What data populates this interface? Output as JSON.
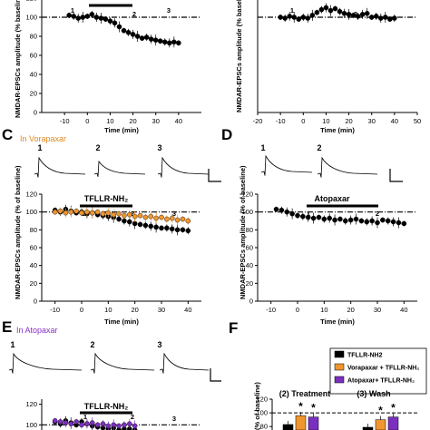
{
  "panels": {
    "A": {
      "yaxis": "NMDAR-EPSCs amplitude (% baseline)",
      "xaxis": "Time (min)",
      "yticks": [
        "0",
        "20",
        "40",
        "60",
        "80",
        "100",
        "120"
      ],
      "xticks": [
        "-10",
        "0",
        "10",
        "20",
        "30",
        "40"
      ],
      "markers": [
        "1",
        "2",
        "3"
      ],
      "bar": ""
    },
    "B": {
      "yaxis": "NMDAR-EPSCs amplitude (% baseline)",
      "xaxis": "Time (min)",
      "yticks": [
        "0",
        "20",
        "40",
        "60",
        "80",
        "100",
        "120"
      ],
      "xticks": [
        "-20",
        "-10",
        "0",
        "10",
        "20",
        "30",
        "40",
        "50"
      ],
      "markers": [
        "1",
        "2"
      ]
    },
    "C": {
      "letter": "C",
      "title": "In Vorapaxar",
      "yaxis": "NMDAR-EPSCs amplitude (% of baseline)",
      "xaxis": "Time (min)",
      "yticks": [
        "0",
        "20",
        "40",
        "60",
        "80",
        "100",
        "120"
      ],
      "xticks": [
        "-10",
        "0",
        "10",
        "20",
        "30",
        "40"
      ],
      "markers": [
        "1",
        "2",
        "3"
      ],
      "trace_labels": [
        "1",
        "2",
        "3"
      ],
      "bar": "TFLLR-NH₂"
    },
    "D": {
      "letter": "D",
      "yaxis": "NMDAR-EPSCs amplitude (% of baseline)",
      "xaxis": "Time (min)",
      "yticks": [
        "0",
        "20",
        "40",
        "60",
        "80",
        "100",
        "120"
      ],
      "xticks": [
        "-10",
        "0",
        "10",
        "20",
        "30",
        "40"
      ],
      "markers": [
        "1",
        "2"
      ],
      "trace_labels": [
        "1",
        "2"
      ],
      "bar": "Atopaxar"
    },
    "E": {
      "letter": "E",
      "title": "In Atopaxar",
      "yticks": [
        "100",
        "120"
      ],
      "markers": [
        "1",
        "2",
        "3"
      ],
      "trace_labels": [
        "1",
        "2",
        "3"
      ],
      "bar": "TFLLR-NH₂"
    },
    "F": {
      "letter": "F",
      "yaxis": "(% of baseline)",
      "yticks": [
        "80",
        "100",
        "120"
      ],
      "groups": [
        "(2) Treatment",
        "(3) Wash"
      ],
      "star": "*",
      "legend": [
        "TFLLR-NH2",
        "Vorapaxar + TFLLR-NH₂",
        "Atopaxar+ TFLLR-NH₂"
      ]
    }
  },
  "colors": {
    "black": "#000000",
    "orange": "#f0962e",
    "purple": "#7b2fbf",
    "title_orange": "#e08a1e",
    "title_purple": "#8a2fc9"
  },
  "chart_data": [
    {
      "panel": "A",
      "type": "scatter",
      "xlim": [
        -20,
        50
      ],
      "ylim": [
        0,
        120
      ],
      "baseline": 100,
      "series": [
        {
          "color": "#000000",
          "x": [
            -8,
            -6,
            -4,
            -2,
            0,
            2,
            4,
            6,
            8,
            10,
            12,
            14,
            16,
            18,
            20,
            22,
            24,
            26,
            28,
            30,
            32,
            34,
            36,
            38,
            40
          ],
          "y": [
            102,
            101,
            99,
            100,
            101,
            103,
            100,
            99,
            98,
            96,
            94,
            90,
            86,
            84,
            82,
            80,
            78,
            79,
            77,
            76,
            75,
            74,
            73,
            74,
            73
          ]
        }
      ]
    },
    {
      "panel": "B",
      "type": "scatter",
      "xlim": [
        -20,
        50
      ],
      "ylim": [
        0,
        120
      ],
      "baseline": 100,
      "series": [
        {
          "color": "#000000",
          "x": [
            -10,
            -8,
            -6,
            -4,
            -2,
            0,
            2,
            4,
            6,
            8,
            10,
            12,
            14,
            16,
            18,
            20,
            22,
            24,
            26,
            28,
            30,
            32,
            34,
            36,
            38,
            40
          ],
          "y": [
            100,
            99,
            101,
            100,
            98,
            100,
            99,
            102,
            105,
            108,
            110,
            107,
            109,
            106,
            104,
            103,
            102,
            101,
            103,
            104,
            100,
            101,
            99,
            100,
            98,
            99
          ]
        }
      ]
    },
    {
      "panel": "C",
      "type": "scatter",
      "xlim": [
        -15,
        45
      ],
      "ylim": [
        0,
        120
      ],
      "baseline": 100,
      "series": [
        {
          "color": "#000000",
          "x": [
            -10,
            -8,
            -6,
            -4,
            -2,
            0,
            2,
            4,
            6,
            8,
            10,
            12,
            14,
            16,
            18,
            20,
            22,
            24,
            26,
            28,
            30,
            32,
            34,
            36,
            38,
            40
          ],
          "y": [
            102,
            100,
            103,
            101,
            99,
            100,
            98,
            99,
            97,
            96,
            95,
            94,
            92,
            90,
            89,
            87,
            86,
            85,
            84,
            83,
            82,
            82,
            81,
            80,
            80,
            79
          ]
        },
        {
          "color": "#f0962e",
          "x": [
            -10,
            -8,
            -6,
            -4,
            -2,
            0,
            2,
            4,
            6,
            8,
            10,
            12,
            14,
            16,
            18,
            20,
            22,
            24,
            26,
            28,
            30,
            32,
            34,
            36,
            38,
            40
          ],
          "y": [
            100,
            101,
            99,
            100,
            101,
            99,
            100,
            99,
            100,
            98,
            99,
            97,
            98,
            96,
            97,
            95,
            96,
            94,
            95,
            93,
            94,
            92,
            93,
            91,
            92,
            90
          ]
        }
      ]
    },
    {
      "panel": "D",
      "type": "scatter",
      "xlim": [
        -15,
        45
      ],
      "ylim": [
        0,
        120
      ],
      "baseline": 100,
      "series": [
        {
          "color": "#000000",
          "x": [
            -8,
            -6,
            -4,
            -2,
            0,
            2,
            4,
            6,
            8,
            10,
            12,
            14,
            16,
            18,
            20,
            22,
            24,
            26,
            28,
            30,
            32,
            34,
            36,
            38,
            40
          ],
          "y": [
            103,
            102,
            100,
            98,
            96,
            95,
            94,
            93,
            94,
            92,
            93,
            91,
            92,
            90,
            91,
            92,
            90,
            89,
            90,
            88,
            91,
            90,
            89,
            88,
            87
          ]
        }
      ]
    },
    {
      "panel": "E",
      "type": "scatter",
      "xlim": [
        -15,
        45
      ],
      "ylim": [
        95,
        125
      ],
      "baseline": 100,
      "series": [
        {
          "color": "#000000",
          "x": [
            -10,
            -8,
            -6,
            -4,
            -2,
            0,
            2,
            4,
            6,
            8,
            10,
            12,
            14,
            16,
            18,
            20
          ],
          "y": [
            103,
            101,
            104,
            102,
            100,
            103,
            101,
            99,
            98,
            97,
            96,
            97,
            95,
            96,
            96,
            95
          ]
        },
        {
          "color": "#7b2fbf",
          "x": [
            -10,
            -8,
            -6,
            -4,
            -2,
            0,
            2,
            4,
            6,
            8,
            10,
            12,
            14,
            16,
            18,
            20
          ],
          "y": [
            104,
            103,
            102,
            101,
            103,
            100,
            101,
            102,
            100,
            101,
            99,
            100,
            99,
            100,
            101,
            99
          ]
        }
      ]
    },
    {
      "panel": "F",
      "type": "bar",
      "ylim": [
        75,
        120
      ],
      "categories": [
        "(2) Treatment",
        "(3) Wash"
      ],
      "series": [
        {
          "name": "TFLLR-NH2",
          "color": "#000000",
          "values": [
            83,
            79
          ]
        },
        {
          "name": "Vorapaxar + TFLLR-NH₂",
          "color": "#f0962e",
          "values": [
            96,
            90
          ]
        },
        {
          "name": "Atopaxar+ TFLLR-NH₂",
          "color": "#7b2fbf",
          "values": [
            94,
            94
          ]
        }
      ]
    }
  ]
}
